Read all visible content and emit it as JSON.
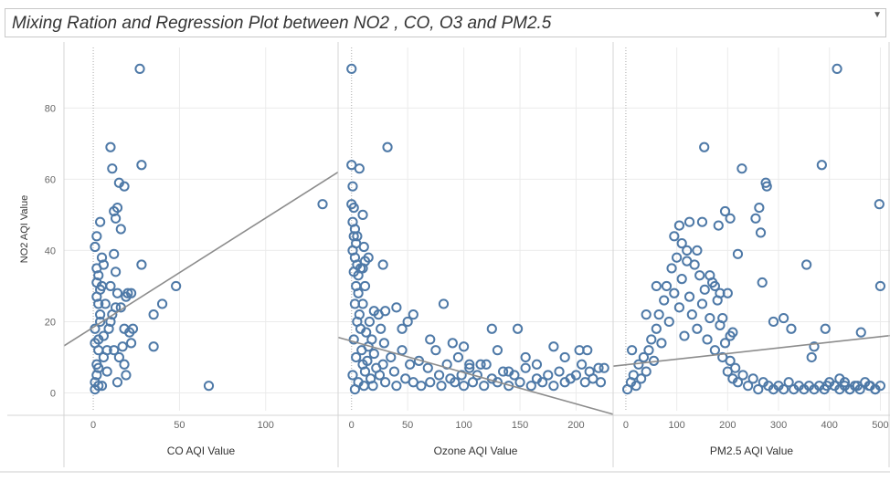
{
  "header": {
    "title": "Mixing Ration and Regression Plot between NO2 , CO, O3 and PM2.5"
  },
  "colors": {
    "marker": "#4e79a7",
    "trend": "#8c8c8c",
    "grid": "#ebebeb",
    "zero_line": "#a8a8a8",
    "border": "#d4d4d4",
    "text": "#666666"
  },
  "chart_data": {
    "type": "scatter",
    "title": "Mixing Ration and Regression Plot between NO2 , CO, O3 and PM2.5",
    "ylabel": "NO2 AQI Value",
    "ylim": [
      -5,
      97
    ],
    "yticks": [
      0,
      20,
      40,
      60,
      80
    ],
    "grid": true,
    "panels": [
      {
        "xlabel": "CO AQI Value",
        "xlim": [
          -17,
          142
        ],
        "xticks": [
          0,
          50,
          100
        ],
        "trend": [
          [
            -17,
            13.2
          ],
          [
            142,
            62
          ]
        ],
        "points": [
          [
            1,
            3
          ],
          [
            2,
            8
          ],
          [
            3,
            12
          ],
          [
            1,
            18
          ],
          [
            4,
            22
          ],
          [
            2,
            27
          ],
          [
            3,
            33
          ],
          [
            5,
            38
          ],
          [
            1,
            41
          ],
          [
            2,
            44
          ],
          [
            4,
            48
          ],
          [
            3,
            15
          ],
          [
            6,
            10
          ],
          [
            2,
            5
          ],
          [
            1,
            1
          ],
          [
            3,
            25
          ],
          [
            5,
            30
          ],
          [
            2,
            35
          ],
          [
            4,
            20
          ],
          [
            6,
            16
          ],
          [
            8,
            12
          ],
          [
            3,
            7
          ],
          [
            7,
            25
          ],
          [
            5,
            2
          ],
          [
            9,
            18
          ],
          [
            4,
            29
          ],
          [
            2,
            31
          ],
          [
            6,
            36
          ],
          [
            1,
            14
          ],
          [
            3,
            2
          ],
          [
            8,
            6
          ],
          [
            10,
            69
          ],
          [
            11,
            63
          ],
          [
            13,
            49
          ],
          [
            12,
            51
          ],
          [
            14,
            52
          ],
          [
            15,
            59
          ],
          [
            16,
            46
          ],
          [
            18,
            58
          ],
          [
            12,
            39
          ],
          [
            13,
            34
          ],
          [
            14,
            28
          ],
          [
            16,
            24
          ],
          [
            18,
            18
          ],
          [
            20,
            28
          ],
          [
            19,
            27
          ],
          [
            22,
            28
          ],
          [
            21,
            17
          ],
          [
            23,
            18
          ],
          [
            10,
            30
          ],
          [
            11,
            22
          ],
          [
            12,
            12
          ],
          [
            15,
            10
          ],
          [
            17,
            13
          ],
          [
            10,
            20
          ],
          [
            13,
            24
          ],
          [
            22,
            14
          ],
          [
            14,
            3
          ],
          [
            18,
            8
          ],
          [
            19,
            5
          ],
          [
            27,
            91
          ],
          [
            28,
            64
          ],
          [
            28,
            36
          ],
          [
            35,
            22
          ],
          [
            35,
            13
          ],
          [
            40,
            25
          ],
          [
            48,
            30
          ],
          [
            67,
            2
          ],
          [
            133,
            53
          ]
        ]
      },
      {
        "xlabel": "Ozone AQI Value",
        "xlim": [
          -12,
          233
        ],
        "xticks": [
          0,
          50,
          100,
          150,
          200
        ],
        "trend": [
          [
            -12,
            15.6
          ],
          [
            233,
            -6
          ]
        ],
        "points": [
          [
            0,
            91
          ],
          [
            0,
            64
          ],
          [
            1,
            58
          ],
          [
            0,
            53
          ],
          [
            2,
            52
          ],
          [
            1,
            48
          ],
          [
            3,
            46
          ],
          [
            2,
            44
          ],
          [
            4,
            42
          ],
          [
            1,
            40
          ],
          [
            3,
            38
          ],
          [
            5,
            36
          ],
          [
            2,
            34
          ],
          [
            4,
            30
          ],
          [
            6,
            28
          ],
          [
            3,
            25
          ],
          [
            7,
            22
          ],
          [
            5,
            20
          ],
          [
            8,
            18
          ],
          [
            2,
            15
          ],
          [
            9,
            12
          ],
          [
            4,
            10
          ],
          [
            10,
            8
          ],
          [
            1,
            5
          ],
          [
            6,
            3
          ],
          [
            3,
            1
          ],
          [
            11,
            2
          ],
          [
            12,
            6
          ],
          [
            14,
            9
          ],
          [
            15,
            13
          ],
          [
            13,
            17
          ],
          [
            16,
            20
          ],
          [
            18,
            15
          ],
          [
            20,
            11
          ],
          [
            22,
            7
          ],
          [
            17,
            4
          ],
          [
            19,
            2
          ],
          [
            25,
            5
          ],
          [
            28,
            8
          ],
          [
            30,
            3
          ],
          [
            24,
            22
          ],
          [
            26,
            18
          ],
          [
            29,
            14
          ],
          [
            35,
            10
          ],
          [
            38,
            6
          ],
          [
            40,
            2
          ],
          [
            45,
            12
          ],
          [
            48,
            4
          ],
          [
            52,
            8
          ],
          [
            55,
            3
          ],
          [
            60,
            9
          ],
          [
            62,
            2
          ],
          [
            68,
            7
          ],
          [
            70,
            3
          ],
          [
            75,
            12
          ],
          [
            78,
            5
          ],
          [
            80,
            2
          ],
          [
            85,
            8
          ],
          [
            88,
            4
          ],
          [
            92,
            3
          ],
          [
            95,
            10
          ],
          [
            98,
            5
          ],
          [
            100,
            2
          ],
          [
            105,
            7
          ],
          [
            108,
            3
          ],
          [
            112,
            5
          ],
          [
            118,
            2
          ],
          [
            120,
            8
          ],
          [
            125,
            4
          ],
          [
            130,
            3
          ],
          [
            135,
            6
          ],
          [
            140,
            2
          ],
          [
            145,
            5
          ],
          [
            150,
            3
          ],
          [
            155,
            7
          ],
          [
            160,
            2
          ],
          [
            165,
            4
          ],
          [
            170,
            3
          ],
          [
            175,
            5
          ],
          [
            180,
            2
          ],
          [
            185,
            6
          ],
          [
            190,
            3
          ],
          [
            195,
            4
          ],
          [
            200,
            5
          ],
          [
            205,
            8
          ],
          [
            208,
            3
          ],
          [
            210,
            12
          ],
          [
            212,
            6
          ],
          [
            215,
            4
          ],
          [
            220,
            7
          ],
          [
            222,
            3
          ],
          [
            10,
            25
          ],
          [
            12,
            30
          ],
          [
            8,
            35
          ],
          [
            6,
            33
          ],
          [
            7,
            63
          ],
          [
            10,
            50
          ],
          [
            5,
            44
          ],
          [
            12,
            37
          ],
          [
            11,
            41
          ],
          [
            15,
            38
          ],
          [
            10,
            35
          ],
          [
            20,
            23
          ],
          [
            30,
            23
          ],
          [
            28,
            36
          ],
          [
            32,
            69
          ],
          [
            40,
            24
          ],
          [
            45,
            18
          ],
          [
            50,
            20
          ],
          [
            55,
            22
          ],
          [
            70,
            15
          ],
          [
            82,
            25
          ],
          [
            90,
            14
          ],
          [
            100,
            13
          ],
          [
            105,
            8
          ],
          [
            115,
            8
          ],
          [
            125,
            18
          ],
          [
            130,
            12
          ],
          [
            140,
            6
          ],
          [
            148,
            18
          ],
          [
            155,
            10
          ],
          [
            165,
            8
          ],
          [
            180,
            13
          ],
          [
            190,
            10
          ],
          [
            203,
            12
          ],
          [
            225,
            7
          ]
        ]
      },
      {
        "xlabel": "PM2.5 AQI Value",
        "xlim": [
          -25,
          519
        ],
        "xticks": [
          0,
          100,
          200,
          300,
          400,
          500
        ],
        "trend": [
          [
            -25,
            7.5
          ],
          [
            519,
            16.1
          ]
        ],
        "points": [
          [
            3,
            1
          ],
          [
            10,
            3
          ],
          [
            15,
            5
          ],
          [
            20,
            2
          ],
          [
            25,
            8
          ],
          [
            30,
            4
          ],
          [
            35,
            10
          ],
          [
            40,
            6
          ],
          [
            45,
            12
          ],
          [
            50,
            15
          ],
          [
            55,
            9
          ],
          [
            60,
            18
          ],
          [
            65,
            22
          ],
          [
            70,
            14
          ],
          [
            75,
            26
          ],
          [
            80,
            30
          ],
          [
            85,
            20
          ],
          [
            90,
            35
          ],
          [
            95,
            28
          ],
          [
            100,
            38
          ],
          [
            105,
            24
          ],
          [
            110,
            32
          ],
          [
            115,
            16
          ],
          [
            120,
            40
          ],
          [
            125,
            27
          ],
          [
            130,
            22
          ],
          [
            135,
            36
          ],
          [
            140,
            18
          ],
          [
            145,
            33
          ],
          [
            150,
            25
          ],
          [
            155,
            29
          ],
          [
            160,
            15
          ],
          [
            165,
            21
          ],
          [
            170,
            31
          ],
          [
            175,
            12
          ],
          [
            180,
            26
          ],
          [
            185,
            19
          ],
          [
            190,
            10
          ],
          [
            195,
            14
          ],
          [
            200,
            6
          ],
          [
            205,
            9
          ],
          [
            210,
            4
          ],
          [
            215,
            7
          ],
          [
            220,
            3
          ],
          [
            230,
            5
          ],
          [
            240,
            2
          ],
          [
            250,
            4
          ],
          [
            260,
            1
          ],
          [
            270,
            3
          ],
          [
            280,
            2
          ],
          [
            290,
            1
          ],
          [
            300,
            2
          ],
          [
            310,
            1
          ],
          [
            320,
            3
          ],
          [
            330,
            1
          ],
          [
            340,
            2
          ],
          [
            350,
            1
          ],
          [
            360,
            2
          ],
          [
            370,
            1
          ],
          [
            380,
            2
          ],
          [
            390,
            1
          ],
          [
            400,
            3
          ],
          [
            410,
            2
          ],
          [
            420,
            1
          ],
          [
            430,
            2
          ],
          [
            440,
            1
          ],
          [
            450,
            2
          ],
          [
            460,
            1
          ],
          [
            470,
            3
          ],
          [
            480,
            2
          ],
          [
            490,
            1
          ],
          [
            500,
            2
          ],
          [
            12,
            12
          ],
          [
            40,
            22
          ],
          [
            60,
            30
          ],
          [
            95,
            44
          ],
          [
            105,
            47
          ],
          [
            110,
            42
          ],
          [
            125,
            48
          ],
          [
            120,
            37
          ],
          [
            140,
            40
          ],
          [
            165,
            33
          ],
          [
            175,
            30
          ],
          [
            185,
            28
          ],
          [
            190,
            21
          ],
          [
            200,
            28
          ],
          [
            205,
            16
          ],
          [
            210,
            17
          ],
          [
            154,
            69
          ],
          [
            150,
            48
          ],
          [
            182,
            47
          ],
          [
            195,
            51
          ],
          [
            205,
            49
          ],
          [
            220,
            39
          ],
          [
            228,
            63
          ],
          [
            262,
            52
          ],
          [
            275,
            59
          ],
          [
            277,
            58
          ],
          [
            255,
            49
          ],
          [
            265,
            45
          ],
          [
            268,
            31
          ],
          [
            290,
            20
          ],
          [
            310,
            21
          ],
          [
            325,
            18
          ],
          [
            355,
            36
          ],
          [
            365,
            10
          ],
          [
            370,
            13
          ],
          [
            385,
            64
          ],
          [
            392,
            18
          ],
          [
            415,
            91
          ],
          [
            440,
            1
          ],
          [
            455,
            2
          ],
          [
            462,
            17
          ],
          [
            478,
            2
          ],
          [
            490,
            1
          ],
          [
            498,
            53
          ],
          [
            500,
            30
          ],
          [
            420,
            4
          ],
          [
            430,
            3
          ],
          [
            395,
            2
          ]
        ]
      }
    ]
  }
}
